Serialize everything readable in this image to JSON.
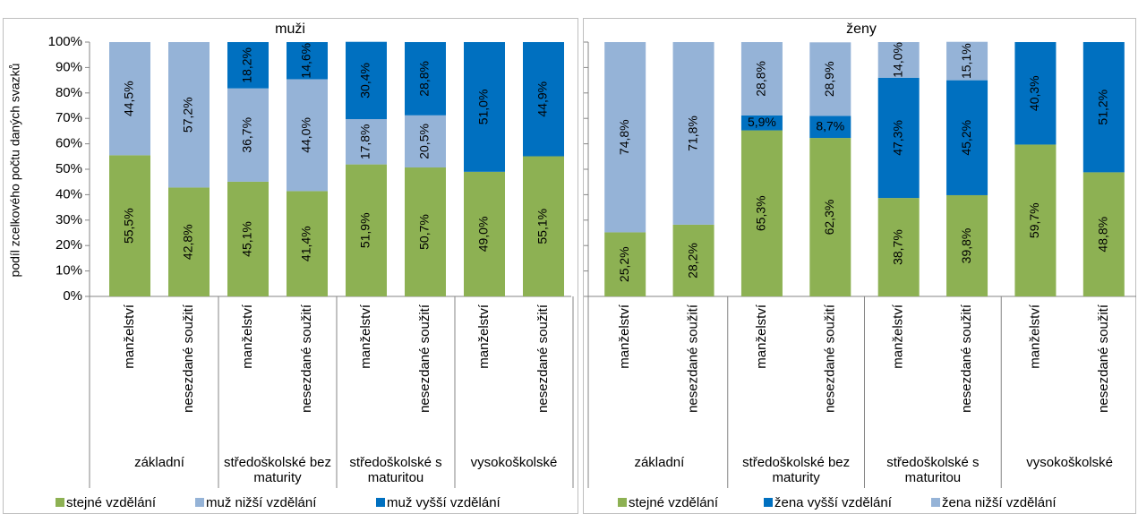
{
  "chart_data": [
    {
      "type": "stacked-bar",
      "title": "muži",
      "y_label": "podíl zcelkového počtu daných svazků",
      "categories": [
        "manželství",
        "nesezdané soužití",
        "manželství",
        "nesezdané soužití",
        "manželství",
        "nesezdané soužití",
        "manželství",
        "nesezdané soužití"
      ],
      "groups": [
        "základní",
        "středoškolské bez maturity",
        "středoškolské s maturitou",
        "vysokoškolské"
      ],
      "ylim": [
        0,
        100
      ],
      "yticks": [
        {
          "value": 0,
          "label": "0%"
        },
        {
          "value": 10,
          "label": "10%"
        },
        {
          "value": 20,
          "label": "20%"
        },
        {
          "value": 30,
          "label": "30%"
        },
        {
          "value": 40,
          "label": "40%"
        },
        {
          "value": 50,
          "label": "50%"
        },
        {
          "value": 60,
          "label": "60%"
        },
        {
          "value": 70,
          "label": "70%"
        },
        {
          "value": 80,
          "label": "80%"
        },
        {
          "value": 90,
          "label": "90%"
        },
        {
          "value": 100,
          "label": "100%"
        }
      ],
      "tick_labels": true,
      "series": [
        {
          "name": "stejné vzdělání",
          "color": "#8db153",
          "values": [
            55.5,
            42.8,
            45.1,
            41.4,
            51.9,
            50.7,
            49.0,
            55.1
          ],
          "value_labels": [
            "55,5%",
            "42,8%",
            "45,1%",
            "41,4%",
            "51,9%",
            "50,7%",
            "49,0%",
            "55,1%"
          ]
        },
        {
          "name": "muž nižší vzdělání",
          "color": "#95b3d7",
          "values": [
            44.5,
            57.2,
            36.7,
            44.0,
            17.8,
            20.5,
            null,
            null
          ],
          "value_labels": [
            "44,5%",
            "57,2%",
            "36,7%",
            "44,0%",
            "17,8%",
            "20,5%",
            null,
            null
          ]
        },
        {
          "name": "muž vyšší vzdělání",
          "color": "#0070c0",
          "values": [
            null,
            null,
            18.2,
            14.6,
            30.4,
            28.8,
            51.0,
            44.9
          ],
          "value_labels": [
            null,
            null,
            "18,2%",
            "14,6%",
            "30,4%",
            "28,8%",
            "51,0%",
            "44,9%"
          ]
        }
      ]
    },
    {
      "type": "stacked-bar",
      "title": "ženy",
      "categories": [
        "manželství",
        "nesezdané soužití",
        "manželství",
        "nesezdané soužití",
        "manželství",
        "nesezdané soužití",
        "manželství",
        "nesezdané soužití"
      ],
      "groups": [
        "základní",
        "středoškolské bez maturity",
        "středoškolské s maturitou",
        "vysokoškolské"
      ],
      "ylim": [
        0,
        100
      ],
      "yticks": [
        0,
        10,
        20,
        30,
        40,
        50,
        60,
        70,
        80,
        90,
        100
      ],
      "tick_labels": false,
      "series": [
        {
          "name": "stejné vzdělání",
          "color": "#8db153",
          "values": [
            25.2,
            28.2,
            65.3,
            62.3,
            38.7,
            39.8,
            59.7,
            48.8
          ],
          "value_labels": [
            "25,2%",
            "28,2%",
            "65,3%",
            "62,3%",
            "38,7%",
            "39,8%",
            "59,7%",
            "48,8%"
          ]
        },
        {
          "name": "žena vyšší vzdělání",
          "color": "#0070c0",
          "values": [
            null,
            null,
            5.9,
            8.7,
            47.3,
            45.2,
            40.3,
            51.2
          ],
          "value_labels": [
            null,
            null,
            "5,9%",
            "8,7%",
            "47,3%",
            "45,2%",
            "40,3%",
            "51,2%"
          ]
        },
        {
          "name": "žena nižší vzdělání",
          "color": "#95b3d7",
          "values": [
            74.8,
            71.8,
            28.8,
            28.9,
            14.0,
            15.1,
            null,
            null
          ],
          "value_labels": [
            "74,8%",
            "71,8%",
            "28,8%",
            "28,9%",
            "14,0%",
            "15,1%",
            null,
            null
          ]
        }
      ]
    }
  ]
}
